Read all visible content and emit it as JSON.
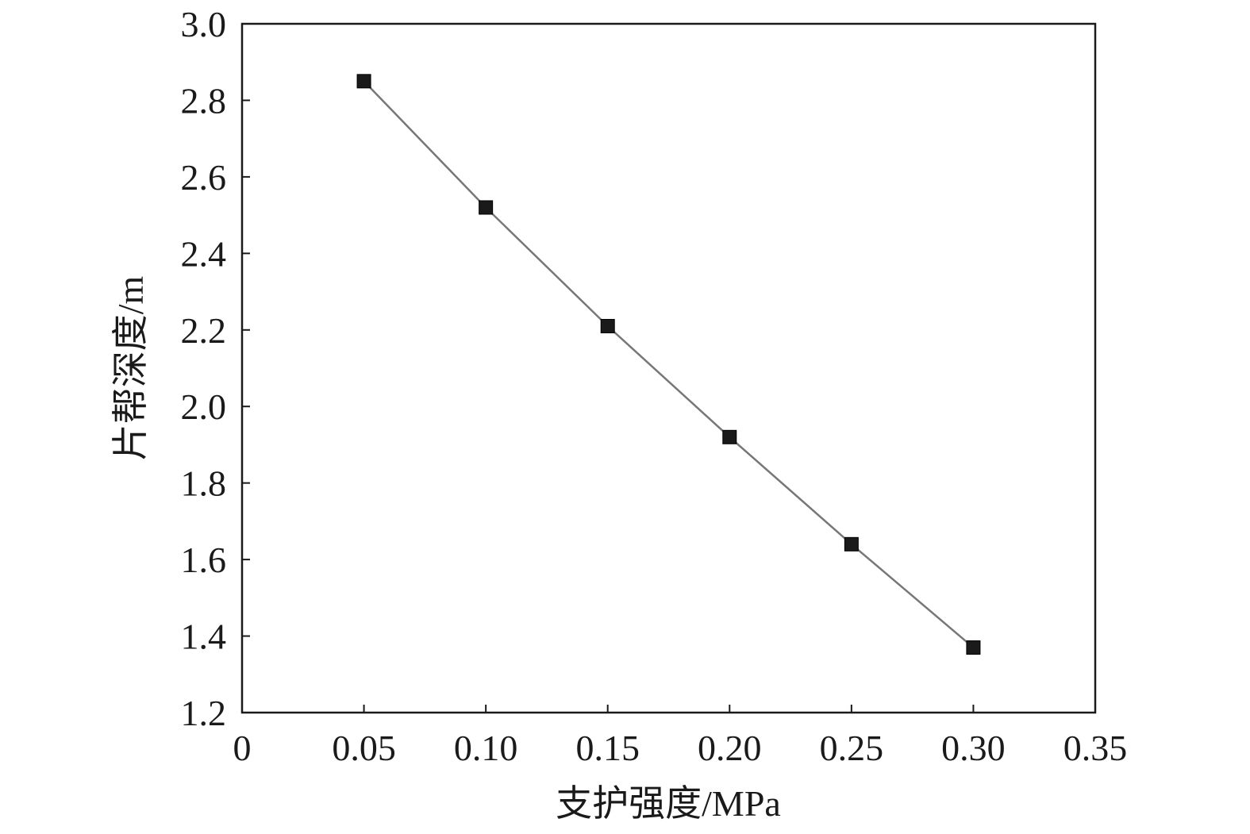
{
  "chart_data": {
    "type": "line",
    "title": "",
    "xlabel": "支护强度/MPa",
    "ylabel": "片帮深度/m",
    "xlim": [
      0,
      0.35
    ],
    "ylim": [
      1.2,
      3.0
    ],
    "x_ticks": [
      "0",
      "0.05",
      "0.10",
      "0.15",
      "0.20",
      "0.25",
      "0.30",
      "0.35"
    ],
    "y_ticks": [
      "1.2",
      "1.4",
      "1.6",
      "1.8",
      "2.0",
      "2.2",
      "2.4",
      "2.6",
      "2.8",
      "3.0"
    ],
    "grid": false,
    "legend": "none",
    "series": [
      {
        "marker": "square",
        "color": "#1a1a1a",
        "line_color": "#777777",
        "x": [
          0.05,
          0.1,
          0.15,
          0.2,
          0.25,
          0.3
        ],
        "y": [
          2.85,
          2.52,
          2.21,
          1.92,
          1.64,
          1.37
        ]
      }
    ]
  }
}
